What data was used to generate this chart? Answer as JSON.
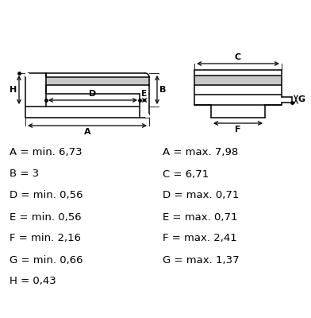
{
  "bg_color": "#ffffff",
  "line_color": "#000000",
  "fill_color": "#c8c8c8",
  "measurements_left": [
    "A = min. 6,73",
    "B = 3",
    "D = min. 0,56",
    "E = min. 0,56",
    "F = min. 2,16",
    "G = min. 0,66",
    "H = 0,43"
  ],
  "measurements_right": [
    "A = max. 7,98",
    "C = 6,71",
    "D = max. 0,71",
    "E = max. 0,71",
    "F = max. 2,41",
    "G = max. 1,37"
  ],
  "font_size": 9.5
}
